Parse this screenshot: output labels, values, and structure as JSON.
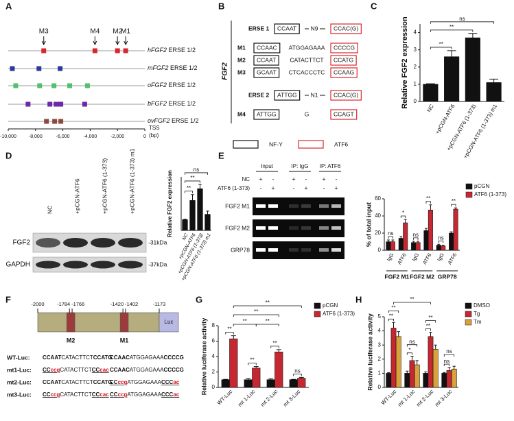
{
  "panel_labels": [
    "A",
    "B",
    "C",
    "D",
    "E",
    "F",
    "G",
    "H"
  ],
  "panel_a": {
    "markers": [
      "M3",
      "M4",
      "M2",
      "M1"
    ],
    "rows": [
      {
        "label": "hFGF2 ERSE 1/2",
        "color": "#d9262c",
        "sites": [
          -7400,
          -3650,
          -2000,
          -1400
        ]
      },
      {
        "label": "mFGF2 ERSE 1/2",
        "color": "#2b3a9e",
        "sites": [
          -9700,
          -7750,
          -6200
        ]
      },
      {
        "label": "oFGF2 ERSE 1/2",
        "color": "#55bf6c",
        "sites": [
          -9450,
          -7700,
          -6650,
          -5500,
          -4200
        ]
      },
      {
        "label": "bFGF2 ERSE 1/2",
        "color": "#6b2aa6",
        "sites": [
          -8550,
          -6950,
          -6500,
          -6350,
          -6150,
          -4400
        ]
      },
      {
        "label": "ovFGF2 ERSE 1/2",
        "color": "#8a4a3c",
        "sites": [
          -7200,
          -6600,
          -6150
        ]
      }
    ],
    "xlim": [
      -10000,
      0
    ],
    "xticks": [
      {
        "value": -10000,
        "label": "-10,000"
      },
      {
        "value": -8000,
        "label": "-8,000"
      },
      {
        "value": -6000,
        "label": "-6,000"
      },
      {
        "value": -4000,
        "label": "-4,000"
      },
      {
        "value": -2000,
        "label": "-2,000"
      },
      0
    ],
    "axis_label": [
      "TSS",
      "(bp)"
    ]
  },
  "panel_b": {
    "gene": "FGF2",
    "rows": [
      {
        "label": "ERSE 1",
        "nfy": "CCAAT",
        "spacer": "N9",
        "atf6": "CCAC(G)"
      },
      {
        "label": "M1",
        "nfy": "CCAAC",
        "spacer": "ATGGAGAAA",
        "atf6": "CCCCG"
      },
      {
        "label": "M2",
        "nfy": "CCAAT",
        "spacer": "CATACTTCT",
        "atf6": "CCATG"
      },
      {
        "label": "M3",
        "nfy": "GCAAT",
        "spacer": "CTCACCCTC",
        "atf6": "CCAAG"
      },
      {
        "label": "ERSE 2",
        "nfy": "ATTGG",
        "spacer": "N1",
        "atf6": "CCAC(G)"
      },
      {
        "label": "M4",
        "nfy": "ATTGG",
        "spacer": "G",
        "atf6": "CCAGT"
      }
    ],
    "legend": [
      "NF-Y",
      "ATF6"
    ]
  },
  "panel_d_blot": {
    "lanes": [
      "NC",
      "+pCGN-ATF6",
      "+pCGN-ATF6 (1-373)",
      "+pCGN-ATF6 (1-373) m1"
    ],
    "proteins": [
      "FGF2",
      "GAPDH"
    ],
    "sizes": [
      "-31kDa",
      "-37kDa"
    ]
  },
  "panel_e_gel": {
    "headers": [
      "Input",
      "IP:  IgG",
      "IP:  ATF6"
    ],
    "conditions": [
      {
        "label": "NC",
        "signs": [
          "+",
          "-",
          "+",
          "-",
          "+",
          "-"
        ]
      },
      {
        "label": "ATF6 (1-373)",
        "signs": [
          "-",
          "+",
          "-",
          "+",
          "-",
          "+"
        ]
      }
    ],
    "targets": [
      "FGF2 M1",
      "FGF2 M2",
      "GRP78"
    ]
  },
  "panel_f": {
    "positions": [
      -2000,
      -1784,
      -1766,
      -1420,
      -1402,
      -1173
    ],
    "elements": [
      "M2",
      "M1",
      "Luc"
    ],
    "constructs": [
      {
        "label": "WT-Luc:",
        "site1": [
          "CCAAT",
          "CATACTTCT",
          "CCATG"
        ],
        "site2": [
          "CCAAC",
          "ATGGAGAAA",
          "CCCCG"
        ]
      },
      {
        "label": "mt1-Luc:",
        "site1": [
          "CCccg",
          "CATACTTCT",
          "CCcac"
        ],
        "site2": [
          "CCAAC",
          "ATGGAGAAA",
          "CCCCG"
        ]
      },
      {
        "label": "mt2-Luc:",
        "site1": [
          "CCAAT",
          "CATACTTCT",
          "CCATG"
        ],
        "site2": [
          "CCccg",
          "ATGGAGAAA",
          "CCCac"
        ]
      },
      {
        "label": "mt3-Luc:",
        "site1": [
          "CCccg",
          "CATACTTCT",
          "CCcac"
        ],
        "site2": [
          "CCccg",
          "ATGGAGAAA",
          "CCCac"
        ]
      }
    ]
  },
  "chart_data": [
    {
      "type": "bar",
      "ylabel": "Relative FGF2 expression",
      "categories": [
        "NC",
        "+pCGN-ATF6",
        "+pCGN-ATF6 (1-373)",
        "+pCGN-ATF6 (1-373) m1"
      ],
      "values": [
        1,
        2.6,
        3.7,
        1.1
      ],
      "errors": [
        0.03,
        0.35,
        0.25,
        0.2
      ],
      "color": "#111111",
      "ylim": [
        0,
        4.5
      ],
      "yticks": [
        0,
        1,
        2,
        3,
        4
      ],
      "annotations": [
        "**",
        "**",
        "ns"
      ]
    },
    {
      "type": "bar",
      "ylabel": "Relative FGF2 expression",
      "categories": [
        "NC",
        "+pCGN-ATF6",
        "+pCGN-ATF6 (1-373)",
        "+pCGN-ATF6 (1-373) m1"
      ],
      "values": [
        1,
        2.8,
        3.9,
        1.5
      ],
      "errors": [
        0.05,
        0.55,
        0.4,
        0.3
      ],
      "color": "#111111",
      "ylim": [
        0,
        5
      ],
      "annotations": [
        "**",
        "**",
        "ns"
      ]
    },
    {
      "type": "bar",
      "ylabel": "% of total input",
      "categories": [
        "IgG",
        "ATF6",
        "IgG",
        "ATF6",
        "IgG",
        "ATF6"
      ],
      "groups": [
        "FGF2 M1",
        "FGF2 M2",
        "GRP78"
      ],
      "series": [
        {
          "name": "pCGN",
          "color": "#111111",
          "values": [
            10,
            14,
            9,
            23,
            6,
            20
          ],
          "errors": [
            2,
            2,
            1.5,
            2.5,
            1,
            1.5
          ]
        },
        {
          "name": "ATF6 (1-373)",
          "color": "#c62832",
          "values": [
            10,
            32,
            9,
            47,
            5,
            48
          ],
          "errors": [
            2,
            4,
            1.5,
            6,
            1,
            1.5
          ]
        }
      ],
      "ylim": [
        0,
        60
      ],
      "yticks": [
        0,
        20,
        40,
        60
      ],
      "annotations": [
        "ns",
        "*",
        "ns",
        "**",
        "ns",
        "**"
      ]
    },
    {
      "type": "bar",
      "ylabel": "Relative luciferase activity",
      "categories": [
        "WT-Luc",
        "mt 1-Luc",
        "mt 2-Luc",
        "mt 3-Luc"
      ],
      "series": [
        {
          "name": "pCGN",
          "color": "#111111",
          "values": [
            1,
            1,
            1,
            1
          ],
          "errors": [
            0.05,
            0.15,
            0.1,
            0.05
          ]
        },
        {
          "name": "ATF6 (1-373)",
          "color": "#c62832",
          "values": [
            6.3,
            2.5,
            4.6,
            1.2
          ],
          "errors": [
            0.4,
            0.2,
            0.3,
            0.1
          ]
        }
      ],
      "ylim": [
        0,
        8
      ],
      "yticks": [
        0,
        2,
        4,
        6,
        8
      ],
      "annotations": [
        "**",
        "**",
        "**",
        "ns",
        "**",
        "**",
        "**",
        "**"
      ]
    },
    {
      "type": "bar",
      "ylabel": "Relative luciferase activity",
      "categories": [
        "WT-Luc",
        "mt 1-Luc",
        "mt 2-Luc",
        "mt 3-Luc"
      ],
      "series": [
        {
          "name": "DMSO",
          "color": "#111111",
          "values": [
            1,
            1,
            1,
            1
          ],
          "errors": [
            0.05,
            0.15,
            0.1,
            0.05
          ]
        },
        {
          "name": "Tg",
          "color": "#c62832",
          "values": [
            4.2,
            1.9,
            3.6,
            1.2
          ],
          "errors": [
            0.4,
            0.3,
            0.3,
            0.2
          ]
        },
        {
          "name": "Tm",
          "color": "#d9a13a",
          "values": [
            3.6,
            1.6,
            2.7,
            1.3
          ],
          "errors": [
            0.35,
            0.3,
            0.3,
            0.2
          ]
        }
      ],
      "ylim": [
        0,
        5
      ],
      "yticks": [
        0,
        1,
        2,
        3,
        4,
        5
      ],
      "annotations": [
        "**",
        "**",
        "*",
        "ns",
        "**",
        "**",
        "ns",
        "ns",
        "**"
      ]
    }
  ]
}
